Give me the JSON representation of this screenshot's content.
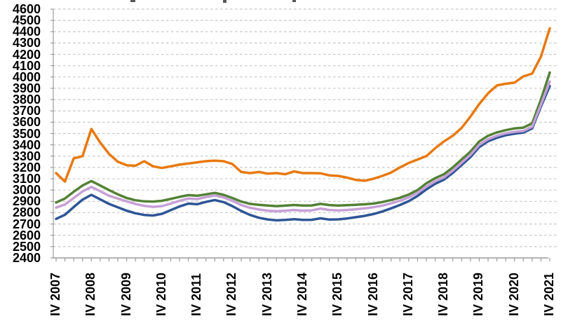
{
  "chart_data": {
    "type": "line",
    "title": "",
    "note_visible_text": "",
    "x_axis": {
      "tick_labels": [
        "IV 2007",
        "IV 2008",
        "IV 2009",
        "IV 2010",
        "IV 2011",
        "IV 2012",
        "IV 2013",
        "IV 2014",
        "IV 2015",
        "IV 2016",
        "IV 2017",
        "IV 2018",
        "IV 2019",
        "IV 2020",
        "IV 2021"
      ],
      "frequency": "quarterly",
      "points_per_series": 57,
      "labeled_every_n_points": 4
    },
    "y_axis": {
      "ylim": [
        2400,
        4600
      ],
      "tick_step": 100,
      "tick_labels": [
        "4600",
        "4500",
        "4400",
        "4300",
        "4200",
        "4100",
        "4000",
        "3900",
        "3800",
        "3700",
        "3600",
        "3500",
        "3400",
        "3300",
        "3200",
        "3100",
        "3000",
        "2900",
        "2800",
        "2700",
        "2600",
        "2500",
        "2400"
      ]
    },
    "grid": {
      "horizontal": "dashed",
      "vertical": "none"
    },
    "legend": "none",
    "series": [
      {
        "name": "series-blue",
        "color": "#2E5596",
        "values": [
          2745,
          2782,
          2850,
          2915,
          2958,
          2918,
          2878,
          2848,
          2818,
          2795,
          2780,
          2775,
          2790,
          2822,
          2855,
          2880,
          2875,
          2895,
          2912,
          2893,
          2858,
          2815,
          2780,
          2755,
          2740,
          2732,
          2736,
          2742,
          2736,
          2737,
          2750,
          2739,
          2741,
          2749,
          2760,
          2772,
          2788,
          2810,
          2838,
          2868,
          2902,
          2948,
          3006,
          3055,
          3092,
          3152,
          3222,
          3292,
          3380,
          3432,
          3462,
          3485,
          3498,
          3508,
          3545,
          3738,
          3920
        ]
      },
      {
        "name": "series-green",
        "color": "#538135",
        "values": [
          2890,
          2925,
          2985,
          3040,
          3080,
          3040,
          3000,
          2962,
          2930,
          2910,
          2900,
          2898,
          2905,
          2922,
          2940,
          2955,
          2950,
          2962,
          2975,
          2958,
          2930,
          2898,
          2878,
          2870,
          2863,
          2858,
          2862,
          2868,
          2863,
          2864,
          2878,
          2867,
          2863,
          2866,
          2870,
          2874,
          2880,
          2894,
          2912,
          2932,
          2960,
          3000,
          3060,
          3105,
          3140,
          3200,
          3270,
          3340,
          3430,
          3480,
          3510,
          3530,
          3545,
          3552,
          3590,
          3800,
          4040
        ]
      },
      {
        "name": "series-violet",
        "color": "#C6A0D6",
        "values": [
          2845,
          2872,
          2930,
          2988,
          3028,
          2990,
          2950,
          2925,
          2900,
          2878,
          2860,
          2852,
          2858,
          2880,
          2905,
          2925,
          2920,
          2938,
          2952,
          2935,
          2905,
          2868,
          2843,
          2828,
          2818,
          2813,
          2818,
          2824,
          2818,
          2820,
          2836,
          2824,
          2820,
          2824,
          2830,
          2838,
          2848,
          2862,
          2882,
          2905,
          2935,
          2975,
          3030,
          3078,
          3112,
          3172,
          3242,
          3312,
          3400,
          3450,
          3480,
          3502,
          3515,
          3522,
          3560,
          3755,
          3960
        ]
      },
      {
        "name": "series-orange",
        "color": "#E8790D",
        "values": [
          3150,
          3075,
          3280,
          3300,
          3540,
          3420,
          3320,
          3250,
          3220,
          3215,
          3255,
          3210,
          3195,
          3210,
          3225,
          3235,
          3245,
          3255,
          3260,
          3255,
          3230,
          3160,
          3150,
          3160,
          3145,
          3150,
          3140,
          3165,
          3150,
          3150,
          3148,
          3130,
          3125,
          3110,
          3090,
          3082,
          3100,
          3125,
          3155,
          3200,
          3240,
          3270,
          3300,
          3370,
          3430,
          3480,
          3550,
          3650,
          3760,
          3855,
          3925,
          3940,
          3950,
          4005,
          4030,
          4180,
          4430
        ]
      }
    ],
    "style": {
      "grid_color": "#c6c6c6",
      "axis_color": "#9b9b9b",
      "label_color": "#000000",
      "line_width": 3.5
    }
  }
}
